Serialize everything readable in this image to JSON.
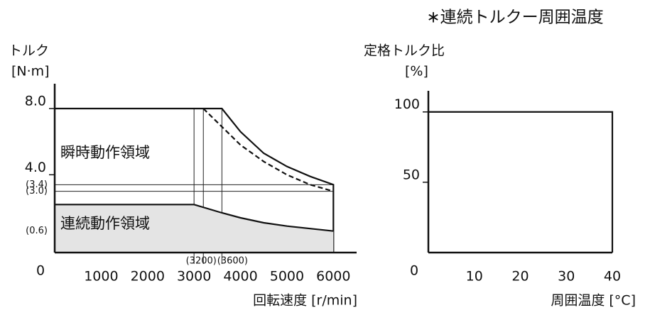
{
  "chart_data": [
    {
      "type": "line",
      "ylabel": [
        "トルク",
        "[N·m]"
      ],
      "xlabel": "回転速度 [r/min]",
      "xlim": [
        0,
        6500
      ],
      "ylim": [
        -0.7,
        9.5
      ],
      "xticks": [
        0,
        1000,
        2000,
        {
          "value": 3000,
          "label": "3000"
        },
        {
          "value": 3200,
          "label": "(3200)"
        },
        {
          "value": 3600,
          "label": "(3600)"
        },
        4000,
        5000,
        6000
      ],
      "yticks": [
        {
          "value": 8,
          "label": "8.0"
        },
        {
          "value": 4,
          "label": "4.0"
        },
        {
          "value": 3.4,
          "label": "(3.4)"
        },
        {
          "value": 3,
          "label": "(3.0)"
        },
        {
          "value": 0.6,
          "label": "(0.6)"
        }
      ],
      "annotations": [
        "瞬時動作領域",
        "連続動作領域"
      ],
      "series": [
        {
          "color": "#111111",
          "x": [
            0,
            3600,
            4000,
            4500,
            5000,
            5500,
            6000,
            6000
          ],
          "values": [
            8,
            8,
            6.6,
            5.3,
            4.5,
            3.9,
            3.4,
            -0.7
          ]
        },
        {
          "color": "#111111",
          "dash": true,
          "x": [
            3200,
            3600,
            4000,
            4500,
            5000,
            5500,
            6000
          ],
          "values": [
            8,
            6.9,
            5.8,
            4.8,
            4.0,
            3.4,
            3.0
          ]
        },
        {
          "color": "#111111",
          "fill": "#e4e4e4",
          "x": [
            0,
            3000,
            3600,
            4000,
            4500,
            5000,
            5500,
            6000
          ],
          "values": [
            2.2,
            2.2,
            1.7,
            1.4,
            1.1,
            0.9,
            0.75,
            0.6
          ]
        }
      ]
    },
    {
      "type": "line",
      "title": "∗連続トルクー周囲温度",
      "ylabel": [
        "定格トルク比",
        "[%]"
      ],
      "xlabel": "周囲温度 [°C]",
      "xlim": [
        0,
        40
      ],
      "ylim": [
        0,
        115
      ],
      "xticks": [
        0,
        10,
        20,
        30,
        40
      ],
      "yticks": [
        100,
        50
      ],
      "series": [
        {
          "color": "#111111",
          "x": [
            0,
            40,
            40
          ],
          "values": [
            100,
            100,
            0
          ]
        }
      ]
    }
  ]
}
